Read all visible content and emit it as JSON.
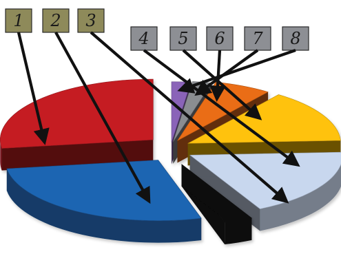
{
  "chart_data": {
    "type": "pie",
    "title": "",
    "slices": [
      {
        "label": "1",
        "value": 27,
        "color": "#c51d24",
        "callout_color": "#8e8a5a"
      },
      {
        "label": "2",
        "value": 27,
        "color": "#1f65b2",
        "callout_color": "#8e8a5a"
      },
      {
        "label": "3",
        "value": 3,
        "color": "#111111",
        "callout_color": "#8e8a5a"
      },
      {
        "label": "4",
        "value": 18,
        "color": "#c8d7ee",
        "callout_color": "#8d8f94"
      },
      {
        "label": "5",
        "value": 14,
        "color": "#ffc20e",
        "callout_color": "#8d8f94"
      },
      {
        "label": "6",
        "value": 6,
        "color": "#ea6d16",
        "callout_color": "#8d8f94"
      },
      {
        "label": "7",
        "value": 2,
        "color": "#8a8d91",
        "callout_color": "#8d8f94"
      },
      {
        "label": "8",
        "value": 2,
        "color": "#8a64b8",
        "callout_color": "#8d8f94"
      }
    ]
  }
}
